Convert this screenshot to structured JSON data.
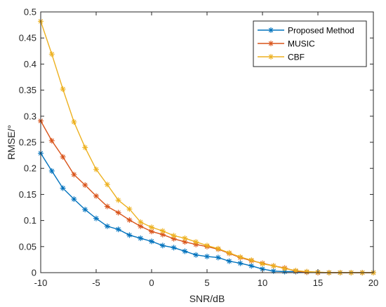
{
  "chart_data": {
    "type": "line",
    "xlabel": "SNR/dB",
    "ylabel": "RMSE/°",
    "xlim": [
      -10,
      20
    ],
    "ylim": [
      0,
      0.5
    ],
    "xticks": [
      "-10",
      "-5",
      "0",
      "5",
      "10",
      "15",
      "20"
    ],
    "yticks": [
      "0",
      "0.05",
      "0.1",
      "0.15",
      "0.2",
      "0.25",
      "0.3",
      "0.35",
      "0.4",
      "0.45",
      "0.5"
    ],
    "grid": false,
    "legend_position": "top-right",
    "x": [
      -10,
      -9,
      -8,
      -7,
      -6,
      -5,
      -4,
      -3,
      -2,
      -1,
      0,
      1,
      2,
      3,
      4,
      5,
      6,
      7,
      8,
      9,
      10,
      11,
      12,
      13,
      14,
      15,
      16,
      17,
      18,
      19,
      20
    ],
    "series": [
      {
        "name": "Proposed Method",
        "color": "#0072BD",
        "marker": "asterisk",
        "values": [
          0.229,
          0.195,
          0.162,
          0.141,
          0.121,
          0.104,
          0.089,
          0.083,
          0.072,
          0.066,
          0.06,
          0.052,
          0.048,
          0.041,
          0.034,
          0.031,
          0.029,
          0.022,
          0.018,
          0.013,
          0.007,
          0.003,
          0.002,
          0.002,
          0.001,
          0,
          0,
          0,
          0,
          0,
          0
        ]
      },
      {
        "name": "MUSIC",
        "color": "#D95319",
        "marker": "asterisk",
        "values": [
          0.291,
          0.253,
          0.222,
          0.188,
          0.168,
          0.147,
          0.127,
          0.115,
          0.101,
          0.089,
          0.079,
          0.073,
          0.065,
          0.059,
          0.054,
          0.05,
          0.045,
          0.037,
          0.029,
          0.023,
          0.018,
          0.013,
          0.009,
          0.003,
          0.001,
          0,
          0,
          0,
          0,
          0,
          0
        ]
      },
      {
        "name": "CBF",
        "color": "#EDB120",
        "marker": "asterisk",
        "values": [
          0.482,
          0.419,
          0.352,
          0.289,
          0.24,
          0.198,
          0.169,
          0.139,
          0.122,
          0.097,
          0.087,
          0.08,
          0.071,
          0.066,
          0.059,
          0.052,
          0.046,
          0.038,
          0.03,
          0.024,
          0.017,
          0.013,
          0.008,
          0.004,
          0.002,
          0.001,
          0,
          0,
          0,
          0,
          0
        ]
      }
    ]
  }
}
